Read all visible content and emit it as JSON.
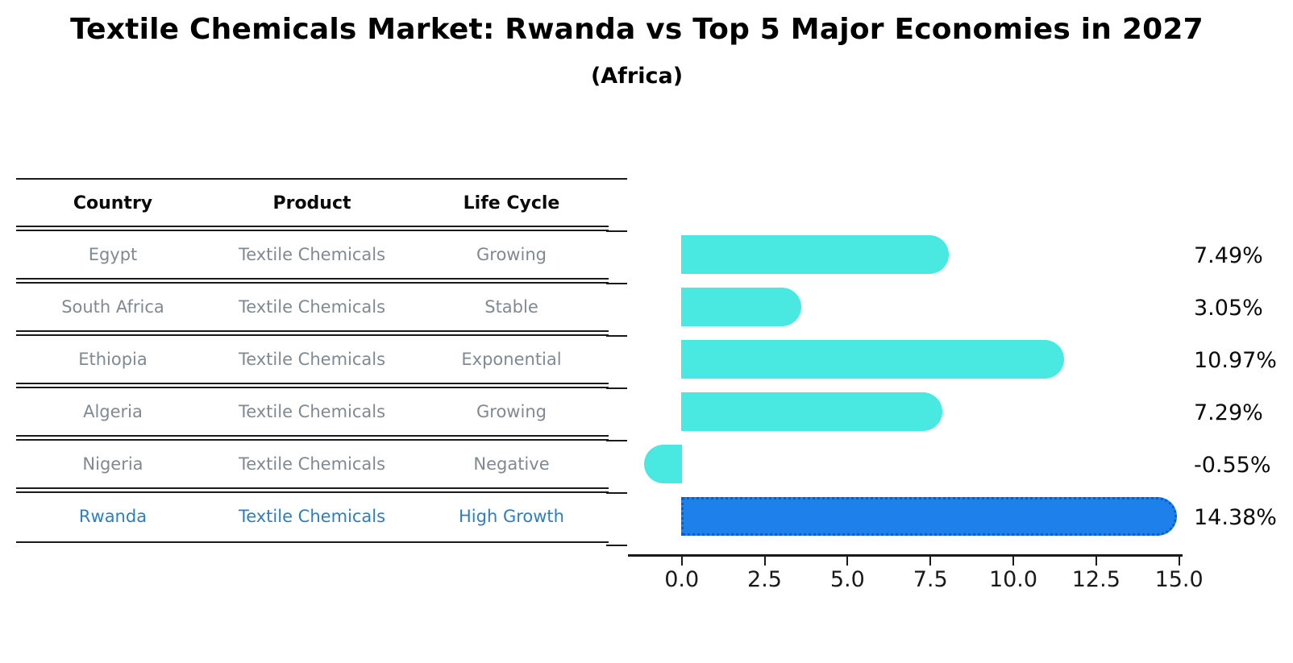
{
  "title": "Textile Chemicals Market: Rwanda vs Top 5 Major Economies in 2027",
  "subtitle": "(Africa)",
  "table": {
    "headers": {
      "country": "Country",
      "product": "Product",
      "life_cycle": "Life Cycle"
    },
    "rows": [
      {
        "country": "Egypt",
        "product": "Textile Chemicals",
        "life_cycle": "Growing"
      },
      {
        "country": "South Africa",
        "product": "Textile Chemicals",
        "life_cycle": "Stable"
      },
      {
        "country": "Ethiopia",
        "product": "Textile Chemicals",
        "life_cycle": "Exponential"
      },
      {
        "country": "Algeria",
        "product": "Textile Chemicals",
        "life_cycle": "Growing"
      },
      {
        "country": "Nigeria",
        "product": "Textile Chemicals",
        "life_cycle": "Negative"
      },
      {
        "country": "Rwanda",
        "product": "Textile Chemicals",
        "life_cycle": "High Growth"
      }
    ],
    "highlight_row": "Rwanda"
  },
  "chart_data": {
    "type": "bar",
    "orientation": "horizontal",
    "title": "Textile Chemicals Market: Rwanda vs Top 5 Major Economies in 2027 (Africa)",
    "categories": [
      "Egypt",
      "South Africa",
      "Ethiopia",
      "Algeria",
      "Nigeria",
      "Rwanda"
    ],
    "values": [
      7.49,
      3.05,
      10.97,
      7.29,
      -0.55,
      14.38
    ],
    "value_labels": [
      "7.49%",
      "3.05%",
      "10.97%",
      "7.29%",
      "-0.55%",
      "14.38%"
    ],
    "x_tick_labels": [
      "0.0",
      "2.5",
      "5.0",
      "7.5",
      "10.0",
      "12.5",
      "15.0"
    ],
    "x_ticks": [
      0.0,
      2.5,
      5.0,
      7.5,
      10.0,
      12.5,
      15.0
    ],
    "xlim": [
      -1.2,
      15.0
    ],
    "grid": false,
    "legend": false,
    "highlight_index": 5,
    "bar_color": "#49e8e1",
    "highlight_bar_color": "#1e80eb",
    "highlight_border_color": "#0c5bd0",
    "highlight_text_color": "#2e7ec0"
  }
}
